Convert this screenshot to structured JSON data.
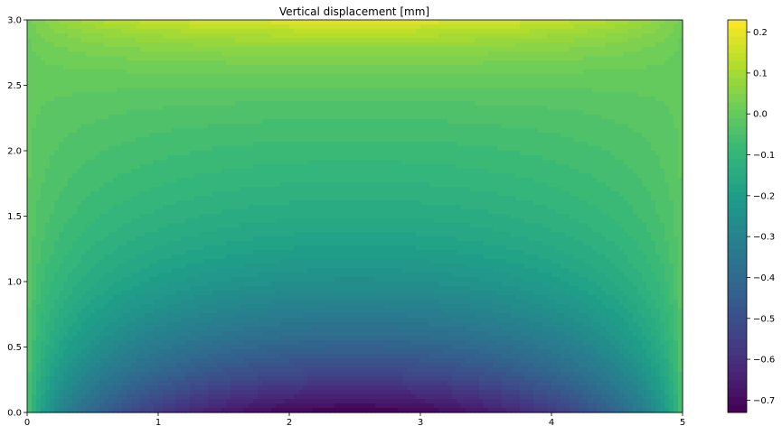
{
  "chart_data": {
    "type": "heatmap",
    "subtype": "filled-contour",
    "title": "Vertical displacement [mm]",
    "xlabel": "",
    "ylabel": "",
    "xlim": [
      0,
      5
    ],
    "ylim": [
      0,
      3
    ],
    "x_ticks": [
      0,
      1,
      2,
      3,
      4,
      5
    ],
    "x_tick_labels": [
      "0",
      "1",
      "2",
      "3",
      "4",
      "5"
    ],
    "y_ticks": [
      0.0,
      0.5,
      1.0,
      1.5,
      2.0,
      2.5,
      3.0
    ],
    "y_tick_labels": [
      "0.0",
      "0.5",
      "1.0",
      "1.5",
      "2.0",
      "2.5",
      "3.0"
    ],
    "colormap": "viridis",
    "colorbar": {
      "min": -0.73,
      "max": 0.23,
      "ticks": [
        0.2,
        0.1,
        0.0,
        -0.1,
        -0.2,
        -0.3,
        -0.4,
        -0.5,
        -0.6,
        -0.7
      ],
      "tick_labels": [
        "0.2",
        "0.1",
        "0.0",
        "−0.1",
        "−0.2",
        "−0.3",
        "−0.4",
        "−0.5",
        "−0.6",
        "−0.7"
      ]
    },
    "field_extremes": {
      "max": {
        "value": 0.22,
        "x": 2.5,
        "y": 3.0
      },
      "min": {
        "value": -0.73,
        "x": 2.5,
        "y": 0.0
      }
    },
    "grid": false,
    "legend": "colorbar-right"
  }
}
